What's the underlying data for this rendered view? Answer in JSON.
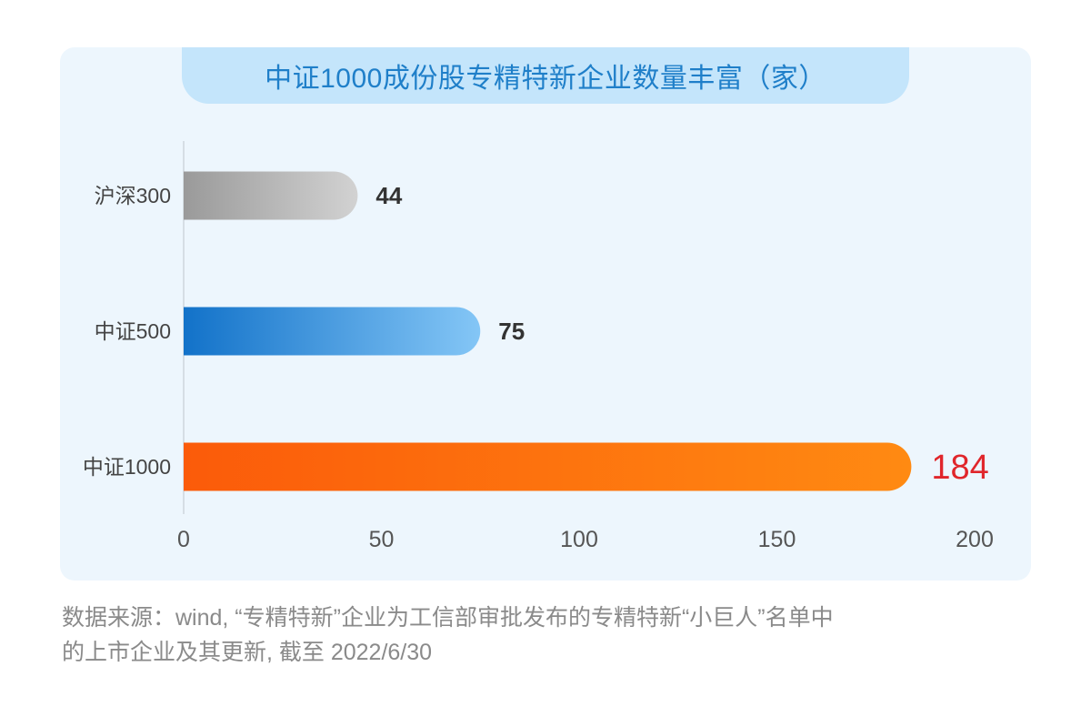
{
  "chart_data": {
    "type": "bar",
    "orientation": "horizontal",
    "title": "中证1000成份股专精特新企业数量丰富（家）",
    "categories": [
      "沪深300",
      "中证500",
      "中证1000"
    ],
    "values": [
      44,
      75,
      184
    ],
    "value_labels": [
      "44",
      "75",
      "184"
    ],
    "xlim": [
      0,
      200
    ],
    "xticks": [
      "0",
      "50",
      "100",
      "150",
      "200"
    ],
    "bar_colors": [
      {
        "from": "#9a9a9a",
        "to": "#d2d2d2"
      },
      {
        "from": "#1272c9",
        "to": "#84c6f6"
      },
      {
        "from": "#fb5b0a",
        "to": "#ff8a12"
      }
    ],
    "value_label_colors": [
      "#333333",
      "#333333",
      "#e0262b"
    ],
    "grid": false
  },
  "footnote": {
    "line1": "数据来源：wind, “专精特新”企业为工信部审批发布的专精特新“小巨人”名单中",
    "line2": "的上市企业及其更新, 截至 2022/6/30"
  }
}
